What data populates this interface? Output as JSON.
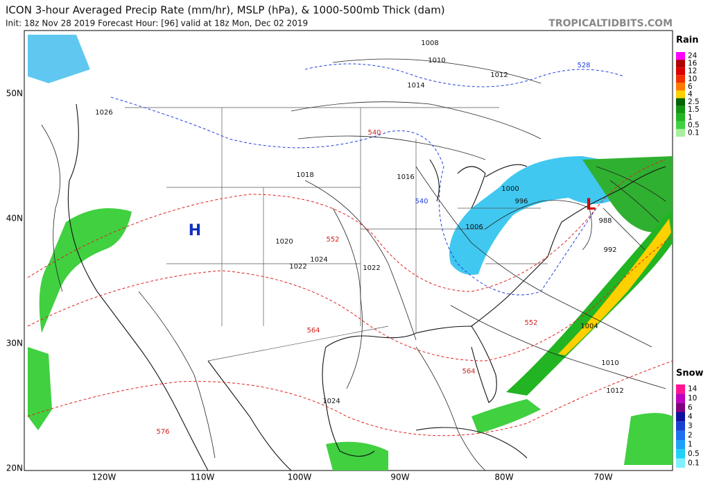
{
  "header": {
    "title": "ICON 3-hour Averaged Precip Rate (mm/hr), MSLP (hPa), & 1000-500mb Thick (dam)",
    "subtitle": "Init: 18z Nov 28 2019   Forecast Hour: [96]   valid at 18z Mon, Dec 02 2019",
    "site": "TROPICALTIDBITS.COM"
  },
  "map": {
    "lat_labels": [
      "50N",
      "40N",
      "30N",
      "20N"
    ],
    "lon_labels": [
      "120W",
      "110W",
      "100W",
      "90W",
      "80W",
      "70W"
    ],
    "contour_labels": [
      "1008",
      "1010",
      "1012",
      "1014",
      "1016",
      "1018",
      "1020",
      "1022",
      "1024",
      "1026",
      "1004",
      "1000",
      "996",
      "992",
      "988",
      "1006",
      "1012",
      "1010",
      "1024",
      "1022"
    ],
    "thickness_labels": [
      "540",
      "552",
      "564",
      "576",
      "528",
      "540",
      "552",
      "564"
    ],
    "pressure_centers": [
      "L",
      "H"
    ]
  },
  "legends": {
    "rain": {
      "title": "Rain",
      "levels": [
        "24",
        "16",
        "12",
        "10",
        "6",
        "4",
        "2.5",
        "1.5",
        "1",
        "0.5",
        "0.1"
      ],
      "colors": [
        "#ff00ff",
        "#b00000",
        "#d80000",
        "#f03000",
        "#ff7a00",
        "#ffd000",
        "#006400",
        "#129612",
        "#22b422",
        "#40d040",
        "#a8f0a0"
      ]
    },
    "snow": {
      "title": "Snow",
      "levels": [
        "14",
        "10",
        "6",
        "4",
        "3",
        "2",
        "1",
        "0.5",
        "0.1"
      ],
      "colors": [
        "#ff1493",
        "#c000c0",
        "#800080",
        "#1010a0",
        "#1840d0",
        "#1e70f0",
        "#20a0f8",
        "#20d0f8",
        "#80f0ff"
      ]
    }
  }
}
